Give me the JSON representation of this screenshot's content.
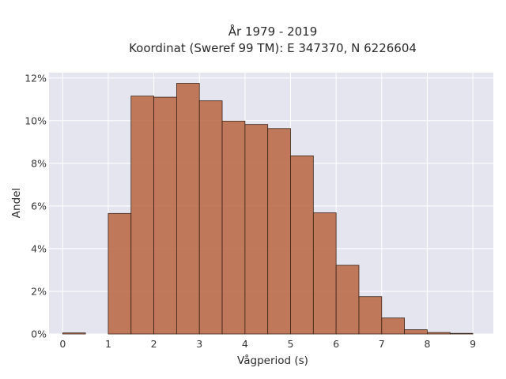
{
  "chart_data": {
    "type": "bar",
    "title_lines": [
      "År 1979 - 2019",
      "Koordinat (Sweref 99 TM): E 347370, N 6226604"
    ],
    "xlabel": "Vågperiod (s)",
    "ylabel": "Andel",
    "bin_width": 0.5,
    "bins": [
      {
        "x": 0.0,
        "value": 0.0005
      },
      {
        "x": 0.5,
        "value": 0.0
      },
      {
        "x": 1.0,
        "value": 0.0565
      },
      {
        "x": 1.5,
        "value": 0.1115
      },
      {
        "x": 2.0,
        "value": 0.111
      },
      {
        "x": 2.5,
        "value": 0.1175
      },
      {
        "x": 3.0,
        "value": 0.1093
      },
      {
        "x": 3.5,
        "value": 0.0998
      },
      {
        "x": 4.0,
        "value": 0.0982
      },
      {
        "x": 4.5,
        "value": 0.0963
      },
      {
        "x": 5.0,
        "value": 0.0835
      },
      {
        "x": 5.5,
        "value": 0.0568
      },
      {
        "x": 6.0,
        "value": 0.0322
      },
      {
        "x": 6.5,
        "value": 0.0175
      },
      {
        "x": 7.0,
        "value": 0.0075
      },
      {
        "x": 7.5,
        "value": 0.002
      },
      {
        "x": 8.0,
        "value": 0.0007
      },
      {
        "x": 8.5,
        "value": 0.0003
      }
    ],
    "xlim": [
      -0.3,
      9.45
    ],
    "ylim": [
      0,
      0.1225
    ],
    "x_ticks": [
      {
        "value": 0,
        "label": "0"
      },
      {
        "value": 1,
        "label": "1"
      },
      {
        "value": 2,
        "label": "2"
      },
      {
        "value": 3,
        "label": "3"
      },
      {
        "value": 4,
        "label": "4"
      },
      {
        "value": 5,
        "label": "5"
      },
      {
        "value": 6,
        "label": "6"
      },
      {
        "value": 7,
        "label": "7"
      },
      {
        "value": 8,
        "label": "8"
      },
      {
        "value": 9,
        "label": "9"
      }
    ],
    "y_ticks": [
      {
        "value": 0,
        "label": "0%"
      },
      {
        "value": 0.02,
        "label": "2%"
      },
      {
        "value": 0.04,
        "label": "4%"
      },
      {
        "value": 0.06,
        "label": "6%"
      },
      {
        "value": 0.08,
        "label": "8%"
      },
      {
        "value": 0.1,
        "label": "10%"
      },
      {
        "value": 0.12,
        "label": "12%"
      }
    ],
    "grid": true,
    "colors": {
      "plot_background": "#e5e5f0",
      "bar": "#b9653f",
      "grid": "#ffffff"
    }
  }
}
